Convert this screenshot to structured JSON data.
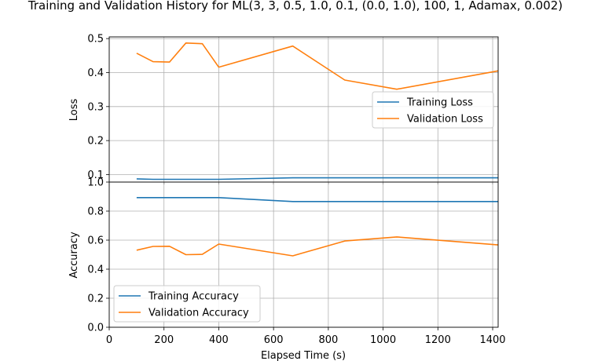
{
  "title": "Training and Validation History for ML(3, 3, 0.5, 1.0, 0.1, (0.0, 1.0), 100, 1, Adamax, 0.002)",
  "colors": {
    "training": "#1f77b4",
    "validation": "#ff7f0e"
  },
  "chart_data": [
    {
      "type": "line",
      "ylabel": "Loss",
      "xlabel": "",
      "xlim": [
        0,
        1420
      ],
      "ylim": [
        0.078,
        0.505
      ],
      "yticks": [
        0.1,
        0.2,
        0.3,
        0.4,
        0.5
      ],
      "ytick_labels": [
        "0.1",
        "0.2",
        "0.3",
        "0.4",
        "0.5"
      ],
      "grid": true,
      "legend": "center-right",
      "series": [
        {
          "name": "Training Loss",
          "x": [
            100,
            160,
            220,
            280,
            340,
            400,
            670,
            860,
            1050,
            1420
          ],
          "values": [
            0.0875,
            0.086,
            0.086,
            0.086,
            0.086,
            0.086,
            0.0905,
            0.0905,
            0.0905,
            0.0905
          ]
        },
        {
          "name": "Validation Loss",
          "x": [
            100,
            160,
            220,
            280,
            340,
            400,
            670,
            860,
            1050,
            1420
          ],
          "values": [
            0.457,
            0.432,
            0.431,
            0.487,
            0.485,
            0.416,
            0.478,
            0.378,
            0.351,
            0.405
          ]
        }
      ]
    },
    {
      "type": "line",
      "ylabel": "Accuracy",
      "xlabel": "Elapsed Time (s)",
      "xlim": [
        0,
        1420
      ],
      "ylim": [
        0,
        1.0
      ],
      "xticks": [
        0,
        200,
        400,
        600,
        800,
        1000,
        1200,
        1400
      ],
      "xtick_labels": [
        "0",
        "200",
        "400",
        "600",
        "800",
        "1000",
        "1200",
        "1400"
      ],
      "yticks": [
        0,
        0.2,
        0.4,
        0.6,
        0.8,
        1.0
      ],
      "ytick_labels": [
        "0.0",
        "0.2",
        "0.4",
        "0.6",
        "0.8",
        "1.0"
      ],
      "grid": true,
      "legend": "bottom-left",
      "series": [
        {
          "name": "Training Accuracy",
          "x": [
            100,
            160,
            220,
            280,
            340,
            400,
            670,
            860,
            1050,
            1420
          ],
          "values": [
            0.893,
            0.893,
            0.893,
            0.893,
            0.893,
            0.893,
            0.866,
            0.866,
            0.866,
            0.866
          ]
        },
        {
          "name": "Validation Accuracy",
          "x": [
            100,
            160,
            220,
            280,
            340,
            400,
            670,
            860,
            1050,
            1420
          ],
          "values": [
            0.531,
            0.557,
            0.558,
            0.5,
            0.502,
            0.573,
            0.492,
            0.594,
            0.622,
            0.567
          ]
        }
      ]
    }
  ]
}
